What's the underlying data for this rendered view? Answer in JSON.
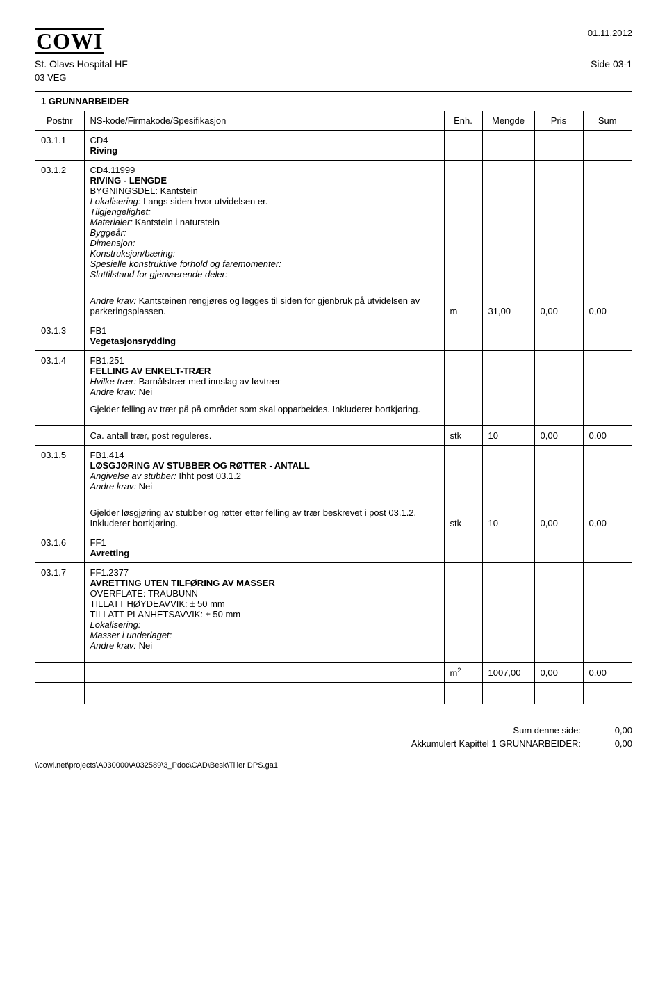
{
  "header": {
    "logo_text": "COWI",
    "date": "01.11.2012",
    "client": "St. Olavs Hospital HF",
    "page_ref": "Side 03-1",
    "category_code": "03 VEG",
    "section_title": "1 GRUNNARBEIDER"
  },
  "columns": {
    "postnr": "Postnr",
    "spec": "NS-kode/Firmakode/Spesifikasjon",
    "enh": "Enh.",
    "mengde": "Mengde",
    "pris": "Pris",
    "sum": "Sum"
  },
  "rows": [
    {
      "postnr": "03.1.1",
      "code": "CD4",
      "title_bold": "Riving"
    },
    {
      "postnr": "03.1.2",
      "code": "CD4.11999",
      "title_bold": "RIVING - LENGDE",
      "lines": [
        "BYGNINGSDEL: Kantstein"
      ],
      "italic_pairs": [
        {
          "label": "Lokalisering:",
          "text": " Langs siden hvor utvidelsen er."
        },
        {
          "label": "Tilgjengelighet:",
          "text": ""
        },
        {
          "label": "Materialer:",
          "text": " Kantstein i naturstein"
        },
        {
          "label": "Byggeår:",
          "text": ""
        },
        {
          "label": "Dimensjon:",
          "text": ""
        },
        {
          "label": "Konstruksjon/bæring:",
          "text": ""
        },
        {
          "label": "Spesielle konstruktive forhold og faremomenter:",
          "text": ""
        },
        {
          "label": "Sluttilstand for gjenværende deler:",
          "text": ""
        }
      ],
      "trailing_pair": {
        "label": "Andre krav:",
        "text": " Kantsteinen rengjøres og legges til siden for gjenbruk på utvidelsen av parkeringsplassen."
      },
      "enh": "m",
      "mengde": "31,00",
      "pris": "0,00",
      "sum": "0,00"
    },
    {
      "postnr": "03.1.3",
      "code": "FB1",
      "title_bold": "Vegetasjonsrydding"
    },
    {
      "postnr": "03.1.4",
      "code": "FB1.251",
      "title_bold": "FELLING AV ENKELT-TRÆR",
      "italic_pairs": [
        {
          "label": "Hvilke trær:",
          "text": " Barnålstrær med innslag av løvtrær"
        },
        {
          "label": "Andre krav:",
          "text": " Nei"
        }
      ],
      "paras": [
        "Gjelder felling av trær på på området som skal opparbeides. Inkluderer bortkjøring."
      ],
      "trailing_plain": "Ca. antall trær, post reguleres.",
      "enh": "stk",
      "mengde": "10",
      "pris": "0,00",
      "sum": "0,00"
    },
    {
      "postnr": "03.1.5",
      "code": "FB1.414",
      "title_bold": "LØSGJØRING AV STUBBER OG RØTTER - ANTALL",
      "italic_pairs": [
        {
          "label": "Angivelse av stubber:",
          "text": " Ihht post 03.1.2"
        },
        {
          "label": "Andre krav:",
          "text": " Nei"
        }
      ],
      "trailing_plain": "Gjelder løsgjøring av stubber og røtter etter felling av trær beskrevet i post 03.1.2. Inkluderer bortkjøring.",
      "enh": "stk",
      "mengde": "10",
      "pris": "0,00",
      "sum": "0,00"
    },
    {
      "postnr": "03.1.6",
      "code": "FF1",
      "title_bold": "Avretting"
    },
    {
      "postnr": "03.1.7",
      "code": "FF1.2377",
      "title_bold": "AVRETTING UTEN TILFØRING AV MASSER",
      "lines": [
        "OVERFLATE: TRAUBUNN",
        "TILLATT HØYDEAVVIK: ± 50 mm",
        "TILLATT PLANHETSAVVIK: ± 50 mm"
      ],
      "italic_pairs": [
        {
          "label": "Lokalisering:",
          "text": ""
        },
        {
          "label": "Masser i underlaget:",
          "text": ""
        },
        {
          "label": "Andre krav:",
          "text": " Nei"
        }
      ],
      "enh": "m²",
      "enh_is_m2": true,
      "mengde": "1007,00",
      "pris": "0,00",
      "sum": "0,00"
    }
  ],
  "footer": {
    "line1_label": "Sum denne side:",
    "line1_val": "0,00",
    "line2_label": "Akkumulert Kapittel 1 GRUNNARBEIDER:",
    "line2_val": "0,00",
    "filepath": "\\\\cowi.net\\projects\\A030000\\A032589\\3_Pdoc\\CAD\\Besk\\Tiller DPS.ga1"
  }
}
